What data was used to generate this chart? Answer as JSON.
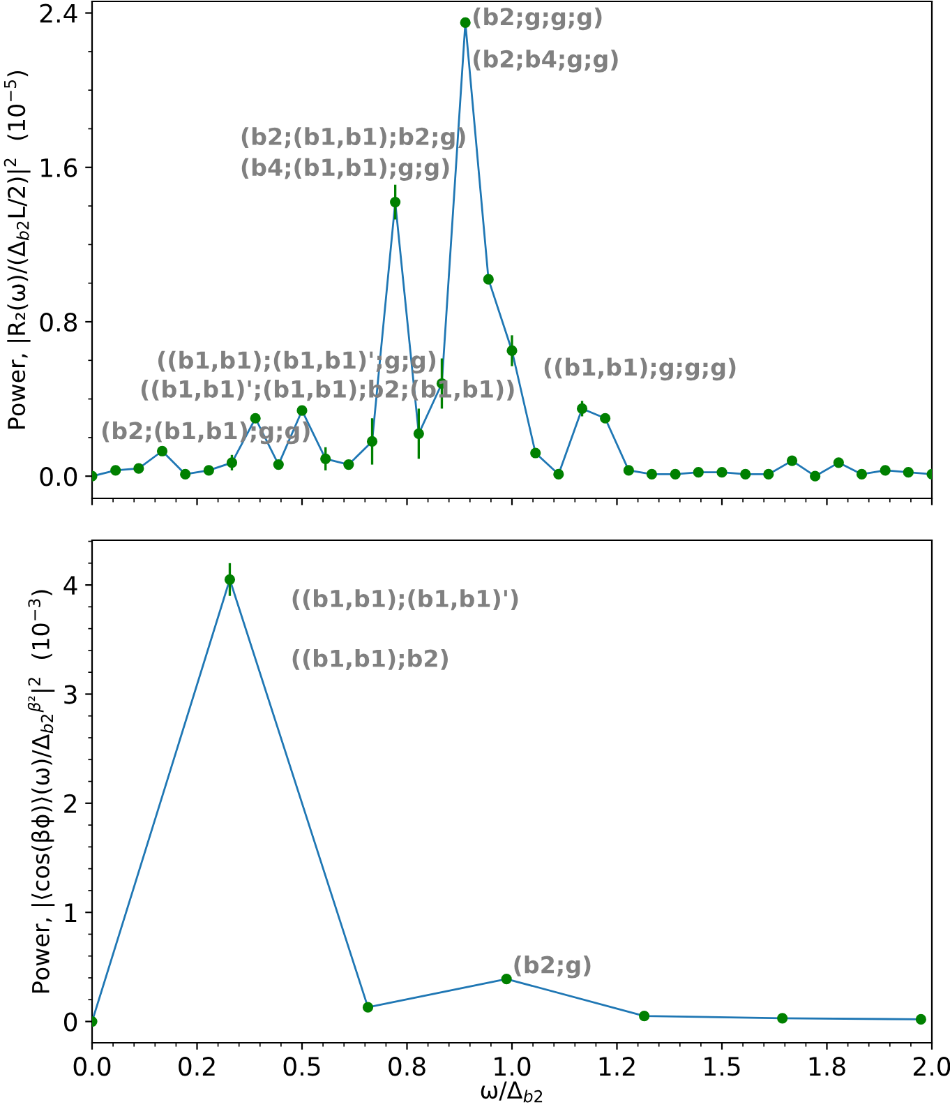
{
  "chart_data": [
    {
      "type": "line",
      "ylabel": "Power, |R₂(ω)/(Δ$_{b2}$L/2)|$^{2}$  (10$^{−5}$)",
      "x": [
        0,
        0.056,
        0.111,
        0.167,
        0.222,
        0.278,
        0.333,
        0.389,
        0.444,
        0.5,
        0.556,
        0.611,
        0.667,
        0.722,
        0.778,
        0.833,
        0.889,
        0.944,
        1.0,
        1.056,
        1.111,
        1.167,
        1.222,
        1.278,
        1.333,
        1.389,
        1.444,
        1.5,
        1.556,
        1.611,
        1.667,
        1.722,
        1.778,
        1.833,
        1.889,
        1.944,
        2.0
      ],
      "series": [
        {
          "color": "#1f77b4",
          "marker": "none",
          "values": [
            0,
            0.03,
            0.04,
            0.13,
            0.01,
            0.03,
            0.07,
            0.3,
            0.06,
            0.34,
            0.09,
            0.06,
            0.18,
            1.42,
            0.22,
            0.48,
            2.35,
            1.02,
            0.65,
            0.12,
            0.01,
            0.35,
            0.3,
            0.03,
            0.01,
            0.01,
            0.02,
            0.02,
            0.01,
            0.01,
            0.08,
            0.0,
            0.07,
            0.01,
            0.03,
            0.02,
            0.01
          ]
        },
        {
          "type": "scatter",
          "color": "#008000",
          "marker": "circle",
          "values": [
            0,
            0.03,
            0.04,
            0.13,
            0.01,
            0.03,
            0.07,
            0.3,
            0.06,
            0.34,
            0.09,
            0.06,
            0.18,
            1.42,
            0.22,
            0.48,
            2.35,
            1.02,
            0.65,
            0.12,
            0.01,
            0.35,
            0.3,
            0.03,
            0.01,
            0.01,
            0.02,
            0.02,
            0.01,
            0.01,
            0.08,
            0.0,
            0.07,
            0.01,
            0.03,
            0.02,
            0.01
          ],
          "errors": [
            null,
            null,
            null,
            null,
            null,
            null,
            0.04,
            null,
            null,
            0.02,
            0.06,
            null,
            0.12,
            0.09,
            0.13,
            0.13,
            null,
            null,
            0.08,
            null,
            null,
            0.04,
            0.02,
            null,
            null,
            null,
            null,
            null,
            null,
            null,
            null,
            null,
            null,
            null,
            null,
            null,
            null
          ]
        }
      ],
      "xlim": [
        0,
        2.0
      ],
      "xticks": [
        {
          "value": 0,
          "label": null
        },
        {
          "value": 0.25,
          "label": null
        },
        {
          "value": 0.5,
          "label": null
        },
        {
          "value": 0.75,
          "label": null
        },
        {
          "value": 1.0,
          "label": null
        },
        {
          "value": 1.25,
          "label": null
        },
        {
          "value": 1.5,
          "label": null
        },
        {
          "value": 1.75,
          "label": null
        },
        {
          "value": 2.0,
          "label": null
        }
      ],
      "ylim": [
        -0.115,
        2.46
      ],
      "yticks": [
        {
          "value": 0,
          "label": "0.0"
        },
        0.8,
        1.6,
        2.4
      ],
      "tick_labels": "y",
      "grid": false,
      "annotations": [
        "(b2;(b1,b1);g;g)",
        "((b1,b1);(b1,b1)';g;g)",
        "((b1,b1)';(b1,b1);b2;(b1,b1))",
        "(b2;(b1,b1);b2;g)",
        "(b4;(b1,b1);g;g)",
        "(b2;g;g;g)",
        "(b2;b4;g;g)",
        "((b1,b1);g;g;g)"
      ]
    },
    {
      "type": "line",
      "xlabel": "ω/Δ$_{b2}$",
      "ylabel": "Power, |⟨cos(βϕ)⟩(ω)/Δ$_{b2}$$^{β²}$|$^{2}$  (10$^{−3}$)",
      "x": [
        0,
        0.328,
        0.657,
        0.987,
        1.315,
        1.644,
        1.974
      ],
      "series": [
        {
          "color": "#1f77b4",
          "marker": "none",
          "values": [
            0,
            4.05,
            0.13,
            0.39,
            0.05,
            0.03,
            0.02
          ]
        },
        {
          "type": "scatter",
          "color": "#008000",
          "marker": "circle",
          "values": [
            0,
            4.05,
            0.13,
            0.39,
            0.05,
            0.03,
            0.02
          ],
          "errors": [
            null,
            0.15,
            null,
            null,
            null,
            null,
            null
          ]
        }
      ],
      "xlim": [
        0,
        2.0
      ],
      "xticks": [
        {
          "value": 0,
          "label": "0.0"
        },
        {
          "value": 0.25,
          "label": "0.2"
        },
        0.5,
        {
          "value": 0.75,
          "label": "0.8"
        },
        {
          "value": 1.0,
          "label": "1.0"
        },
        {
          "value": 1.25,
          "label": "1.2"
        },
        1.5,
        {
          "value": 1.75,
          "label": "1.8"
        },
        {
          "value": 2.0,
          "label": "2.0"
        }
      ],
      "ylim": [
        -0.195,
        4.41
      ],
      "yticks": [
        0,
        1,
        2,
        3,
        4
      ],
      "grid": false,
      "annotations": [
        "((b1,b1);(b1,b1)')",
        "((b1,b1);b2)",
        "(b2;g)"
      ]
    }
  ]
}
